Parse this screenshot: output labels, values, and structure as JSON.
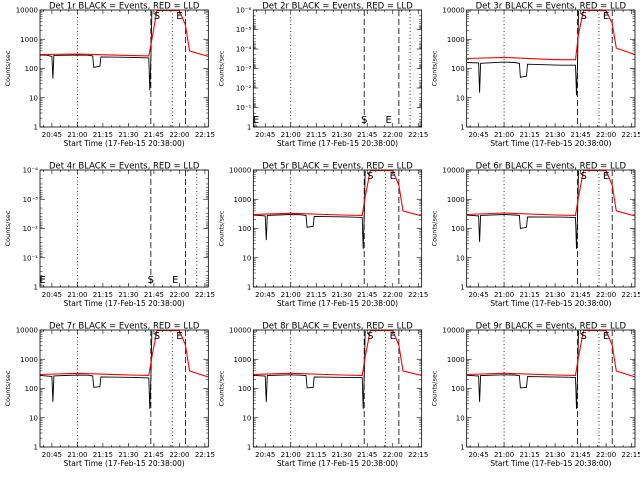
{
  "figure": {
    "x_ticks": [
      "20:45",
      "21:00",
      "21:15",
      "21:30",
      "21:45",
      "22:00",
      "22:15"
    ],
    "x_tick_hours": [
      20.75,
      21.0,
      21.25,
      21.5,
      21.75,
      22.0,
      22.25
    ],
    "xlim_hours": [
      20.6333,
      22.2833
    ],
    "xlabel": "Start Time (17-Feb-15 20:38:00)",
    "ylabel": "Counts/sec",
    "colors": {
      "events": "#000000",
      "lld": "#ff0000",
      "axes": "#000000"
    }
  },
  "chart_data": [
    {
      "type": "line",
      "title": "Det 1r BLACK = Events, RED = LLD",
      "scale": "log",
      "ylim": [
        1,
        10000
      ],
      "y_ticks": [
        "1",
        "10",
        "100",
        "1000",
        "10000"
      ],
      "has_data": true,
      "markers": [
        {
          "label": "S",
          "x": 21.78
        },
        {
          "label": "E",
          "x": 22.0
        }
      ],
      "vlines_dotted": [
        21.0,
        21.93
      ],
      "vlines_dashed": [
        21.72,
        22.06
      ],
      "series": [
        {
          "name": "Events",
          "values": [
            [
              20.63,
              290
            ],
            [
              20.7,
              285
            ],
            [
              20.75,
              260
            ],
            [
              20.76,
              45
            ],
            [
              20.77,
              280
            ],
            [
              21.0,
              290
            ],
            [
              21.1,
              285
            ],
            [
              21.15,
              270
            ],
            [
              21.16,
              110
            ],
            [
              21.22,
              120
            ],
            [
              21.23,
              250
            ],
            [
              21.55,
              240
            ],
            [
              21.7,
              230
            ],
            [
              21.71,
              18
            ],
            [
              21.72,
              230
            ],
            [
              21.73,
              9500
            ]
          ]
        },
        {
          "name": "LLD",
          "values": [
            [
              20.63,
              300
            ],
            [
              21.0,
              310
            ],
            [
              21.5,
              280
            ],
            [
              21.7,
              270
            ],
            [
              21.73,
              1000
            ],
            [
              21.78,
              9800
            ],
            [
              22.0,
              9500
            ],
            [
              22.06,
              3000
            ],
            [
              22.1,
              400
            ],
            [
              22.28,
              260
            ]
          ]
        }
      ]
    },
    {
      "type": "line",
      "title": "Det 2r BLACK = Events, RED = LLD",
      "scale": "log",
      "ylim": [
        1,
        1e-06
      ],
      "y_ticks": [
        "1",
        "10⁻¹",
        "10⁻²",
        "10⁻³",
        "10⁻⁴",
        "10⁻⁵",
        "10⁻⁶"
      ],
      "has_data": false,
      "markers": [
        {
          "label": "E",
          "x": 20.66
        },
        {
          "label": "S",
          "x": 21.72
        },
        {
          "label": "E",
          "x": 21.96
        }
      ],
      "vlines_dotted": [
        21.0,
        22.17
      ],
      "vlines_dashed": [
        21.72,
        22.06
      ],
      "series": []
    },
    {
      "type": "line",
      "title": "Det 3r BLACK = Events, RED = LLD",
      "scale": "log",
      "ylim": [
        1,
        10000
      ],
      "y_ticks": [
        "1",
        "10",
        "100",
        "1000",
        "10000"
      ],
      "has_data": true,
      "markers": [
        {
          "label": "S",
          "x": 21.78
        },
        {
          "label": "E",
          "x": 22.0
        }
      ],
      "vlines_dotted": [
        21.0,
        21.93
      ],
      "vlines_dashed": [
        21.72,
        22.06
      ],
      "series": [
        {
          "name": "Events",
          "values": [
            [
              20.63,
              160
            ],
            [
              20.75,
              155
            ],
            [
              20.76,
              15
            ],
            [
              20.77,
              150
            ],
            [
              21.0,
              165
            ],
            [
              21.1,
              160
            ],
            [
              21.15,
              150
            ],
            [
              21.16,
              50
            ],
            [
              21.22,
              55
            ],
            [
              21.23,
              140
            ],
            [
              21.55,
              130
            ],
            [
              21.7,
              130
            ],
            [
              21.71,
              12
            ],
            [
              21.72,
              130
            ],
            [
              21.73,
              9500
            ]
          ]
        },
        {
          "name": "LLD",
          "values": [
            [
              20.63,
              220
            ],
            [
              21.0,
              240
            ],
            [
              21.5,
              200
            ],
            [
              21.7,
              200
            ],
            [
              21.73,
              1500
            ],
            [
              21.78,
              9800
            ],
            [
              22.0,
              9500
            ],
            [
              22.06,
              3500
            ],
            [
              22.1,
              500
            ],
            [
              22.28,
              300
            ]
          ]
        }
      ]
    },
    {
      "type": "line",
      "title": "Det 4r BLACK = Events, RED = LLD",
      "scale": "log",
      "ylim": [
        1,
        0.0001
      ],
      "y_ticks": [
        "1",
        "10⁻¹",
        "10⁻²",
        "10⁻³",
        "10⁻⁴"
      ],
      "has_data": false,
      "markers": [
        {
          "label": "E",
          "x": 20.66
        },
        {
          "label": "S",
          "x": 21.72
        },
        {
          "label": "E",
          "x": 21.96
        }
      ],
      "vlines_dotted": [
        21.0,
        22.17
      ],
      "vlines_dashed": [
        21.72,
        22.06
      ],
      "series": []
    },
    {
      "type": "line",
      "title": "Det 5r BLACK = Events, RED = LLD",
      "scale": "log",
      "ylim": [
        1,
        10000
      ],
      "y_ticks": [
        "1",
        "10",
        "100",
        "1000",
        "10000"
      ],
      "has_data": true,
      "markers": [
        {
          "label": "S",
          "x": 21.78
        },
        {
          "label": "E",
          "x": 22.0
        }
      ],
      "vlines_dotted": [
        21.0,
        21.93
      ],
      "vlines_dashed": [
        21.72,
        22.06
      ],
      "series": [
        {
          "name": "Events",
          "values": [
            [
              20.63,
              290
            ],
            [
              20.75,
              270
            ],
            [
              20.76,
              40
            ],
            [
              20.77,
              280
            ],
            [
              21.0,
              300
            ],
            [
              21.1,
              295
            ],
            [
              21.15,
              280
            ],
            [
              21.16,
              110
            ],
            [
              21.22,
              120
            ],
            [
              21.23,
              260
            ],
            [
              21.55,
              250
            ],
            [
              21.7,
              240
            ],
            [
              21.71,
              20
            ],
            [
              21.72,
              240
            ],
            [
              21.73,
              9500
            ]
          ]
        },
        {
          "name": "LLD",
          "values": [
            [
              20.63,
              300
            ],
            [
              21.0,
              330
            ],
            [
              21.5,
              290
            ],
            [
              21.7,
              280
            ],
            [
              21.73,
              1200
            ],
            [
              21.78,
              9800
            ],
            [
              22.0,
              9500
            ],
            [
              22.06,
              3000
            ],
            [
              22.1,
              400
            ],
            [
              22.28,
              270
            ]
          ]
        }
      ]
    },
    {
      "type": "line",
      "title": "Det 6r BLACK = Events, RED = LLD",
      "scale": "log",
      "ylim": [
        1,
        10000
      ],
      "y_ticks": [
        "1",
        "10",
        "100",
        "1000",
        "10000"
      ],
      "has_data": true,
      "markers": [
        {
          "label": "S",
          "x": 21.78
        },
        {
          "label": "E",
          "x": 22.0
        }
      ],
      "vlines_dotted": [
        21.0,
        21.93
      ],
      "vlines_dashed": [
        21.72,
        22.06
      ],
      "series": [
        {
          "name": "Events",
          "values": [
            [
              20.63,
              290
            ],
            [
              20.75,
              270
            ],
            [
              20.76,
              35
            ],
            [
              20.77,
              280
            ],
            [
              21.0,
              300
            ],
            [
              21.1,
              290
            ],
            [
              21.15,
              280
            ],
            [
              21.16,
              100
            ],
            [
              21.22,
              110
            ],
            [
              21.23,
              250
            ],
            [
              21.55,
              245
            ],
            [
              21.7,
              240
            ],
            [
              21.71,
              20
            ],
            [
              21.72,
              240
            ],
            [
              21.73,
              9500
            ]
          ]
        },
        {
          "name": "LLD",
          "values": [
            [
              20.63,
              300
            ],
            [
              21.0,
              340
            ],
            [
              21.5,
              290
            ],
            [
              21.7,
              280
            ],
            [
              21.73,
              1200
            ],
            [
              21.78,
              9800
            ],
            [
              22.0,
              9500
            ],
            [
              22.06,
              3000
            ],
            [
              22.1,
              400
            ],
            [
              22.28,
              270
            ]
          ]
        }
      ]
    },
    {
      "type": "line",
      "title": "Det 7r BLACK = Events, RED = LLD",
      "scale": "log",
      "ylim": [
        1,
        10000
      ],
      "y_ticks": [
        "1",
        "10",
        "100",
        "1000",
        "10000"
      ],
      "has_data": true,
      "markers": [
        {
          "label": "S",
          "x": 21.78
        },
        {
          "label": "E",
          "x": 22.0
        }
      ],
      "vlines_dotted": [
        21.0,
        21.93
      ],
      "vlines_dashed": [
        21.72,
        22.06
      ],
      "series": [
        {
          "name": "Events",
          "values": [
            [
              20.63,
              280
            ],
            [
              20.75,
              260
            ],
            [
              20.76,
              35
            ],
            [
              20.77,
              270
            ],
            [
              21.0,
              290
            ],
            [
              21.1,
              285
            ],
            [
              21.15,
              270
            ],
            [
              21.16,
              110
            ],
            [
              21.22,
              115
            ],
            [
              21.23,
              250
            ],
            [
              21.55,
              240
            ],
            [
              21.7,
              230
            ],
            [
              21.71,
              20
            ],
            [
              21.72,
              230
            ],
            [
              21.73,
              9500
            ]
          ]
        },
        {
          "name": "LLD",
          "values": [
            [
              20.63,
              300
            ],
            [
              21.0,
              330
            ],
            [
              21.5,
              290
            ],
            [
              21.7,
              280
            ],
            [
              21.73,
              1200
            ],
            [
              21.78,
              9800
            ],
            [
              22.0,
              9500
            ],
            [
              22.06,
              3000
            ],
            [
              22.1,
              400
            ],
            [
              22.28,
              250
            ]
          ]
        }
      ]
    },
    {
      "type": "line",
      "title": "Det 8r BLACK = Events, RED = LLD",
      "scale": "log",
      "ylim": [
        1,
        10000
      ],
      "y_ticks": [
        "1",
        "10",
        "100",
        "1000",
        "10000"
      ],
      "has_data": true,
      "markers": [
        {
          "label": "S",
          "x": 21.78
        },
        {
          "label": "E",
          "x": 22.0
        }
      ],
      "vlines_dotted": [
        21.0,
        21.93
      ],
      "vlines_dashed": [
        21.72,
        22.06
      ],
      "series": [
        {
          "name": "Events",
          "values": [
            [
              20.63,
              280
            ],
            [
              20.75,
              265
            ],
            [
              20.76,
              35
            ],
            [
              20.77,
              275
            ],
            [
              21.0,
              295
            ],
            [
              21.1,
              285
            ],
            [
              21.15,
              275
            ],
            [
              21.16,
              105
            ],
            [
              21.22,
              110
            ],
            [
              21.23,
              250
            ],
            [
              21.55,
              240
            ],
            [
              21.7,
              235
            ],
            [
              21.71,
              20
            ],
            [
              21.72,
              235
            ],
            [
              21.73,
              9500
            ]
          ]
        },
        {
          "name": "LLD",
          "values": [
            [
              20.63,
              300
            ],
            [
              21.0,
              330
            ],
            [
              21.5,
              290
            ],
            [
              21.7,
              280
            ],
            [
              21.73,
              1200
            ],
            [
              21.78,
              9800
            ],
            [
              22.0,
              9500
            ],
            [
              22.06,
              3000
            ],
            [
              22.1,
              400
            ],
            [
              22.28,
              280
            ]
          ]
        }
      ]
    },
    {
      "type": "line",
      "title": "Det 9r BLACK = Events, RED = LLD",
      "scale": "log",
      "ylim": [
        1,
        10000
      ],
      "y_ticks": [
        "1",
        "10",
        "100",
        "1000",
        "10000"
      ],
      "has_data": true,
      "markers": [
        {
          "label": "S",
          "x": 21.78
        },
        {
          "label": "E",
          "x": 22.0
        }
      ],
      "vlines_dotted": [
        21.0,
        21.93
      ],
      "vlines_dashed": [
        21.72,
        22.06
      ],
      "series": [
        {
          "name": "Events",
          "values": [
            [
              20.63,
              285
            ],
            [
              20.75,
              265
            ],
            [
              20.76,
              35
            ],
            [
              20.77,
              275
            ],
            [
              21.0,
              295
            ],
            [
              21.1,
              290
            ],
            [
              21.15,
              275
            ],
            [
              21.16,
              105
            ],
            [
              21.22,
              110
            ],
            [
              21.23,
              255
            ],
            [
              21.55,
              245
            ],
            [
              21.7,
              240
            ],
            [
              21.71,
              20
            ],
            [
              21.72,
              240
            ],
            [
              21.73,
              9500
            ]
          ]
        },
        {
          "name": "LLD",
          "values": [
            [
              20.63,
              300
            ],
            [
              21.0,
              330
            ],
            [
              21.5,
              290
            ],
            [
              21.7,
              280
            ],
            [
              21.73,
              1200
            ],
            [
              21.78,
              9800
            ],
            [
              22.0,
              9500
            ],
            [
              22.06,
              3000
            ],
            [
              22.1,
              400
            ],
            [
              22.28,
              250
            ]
          ]
        }
      ]
    }
  ]
}
